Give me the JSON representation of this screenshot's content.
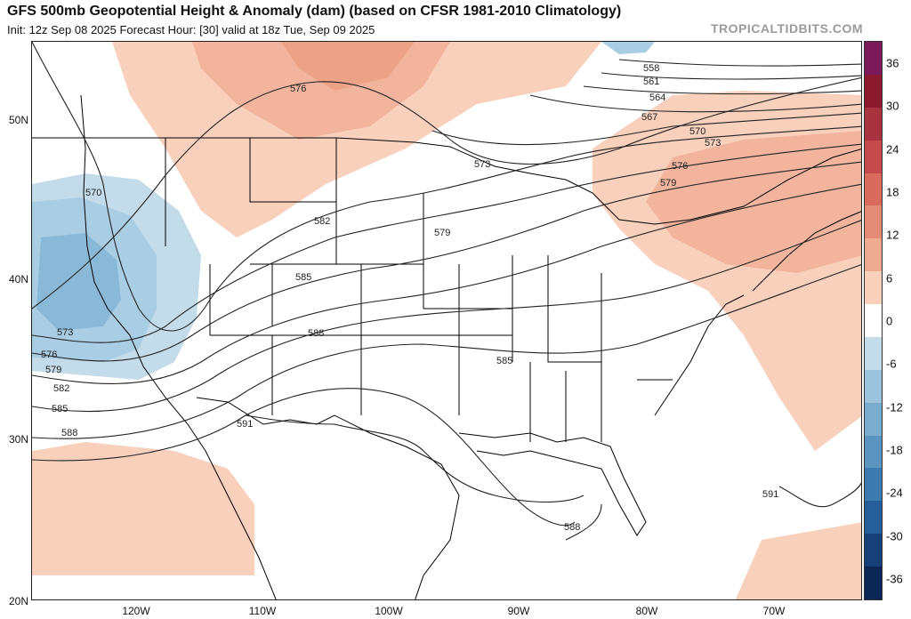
{
  "header": {
    "title": "GFS 500mb Geopotential Height & Anomaly (dam) (based on CFSR 1981-2010 Climatology)",
    "subtitle": "Init: 12z Sep 08 2025   Forecast Hour: [30]   valid at 18z Tue, Sep 09 2025",
    "credit": "TROPICALTIDBITS.COM"
  },
  "axes": {
    "lat_labels": [
      "50N",
      "40N",
      "30N",
      "20N"
    ],
    "lon_labels": [
      "120W",
      "110W",
      "100W",
      "90W",
      "80W",
      "70W"
    ]
  },
  "colorbar": {
    "labels": [
      "36",
      "30",
      "24",
      "18",
      "12",
      "6",
      "0",
      "-6",
      "-12",
      "-18",
      "-24",
      "-30",
      "-36"
    ],
    "colors": [
      "#7a1a5a",
      "#8b1a2e",
      "#a8323e",
      "#c44a4e",
      "#d86a5e",
      "#e48b78",
      "#efaa92",
      "#f8d0bc",
      "#ffffff",
      "#c4dcea",
      "#9cc4dc",
      "#7aaccd",
      "#5a94bf",
      "#3c7ab0",
      "#255e98",
      "#173f78",
      "#0c2656"
    ]
  },
  "contour_labels": [
    "576",
    "558",
    "561",
    "564",
    "567",
    "570",
    "573",
    "576",
    "579",
    "570",
    "573",
    "582",
    "579",
    "585",
    "573",
    "576",
    "579",
    "582",
    "585",
    "588",
    "588",
    "591",
    "585",
    "591",
    "588"
  ],
  "colors": {
    "contour": "#222222",
    "boundary": "#000000",
    "positive_anomaly": "#f2b49c",
    "negative_anomaly": "#a9cde3"
  }
}
